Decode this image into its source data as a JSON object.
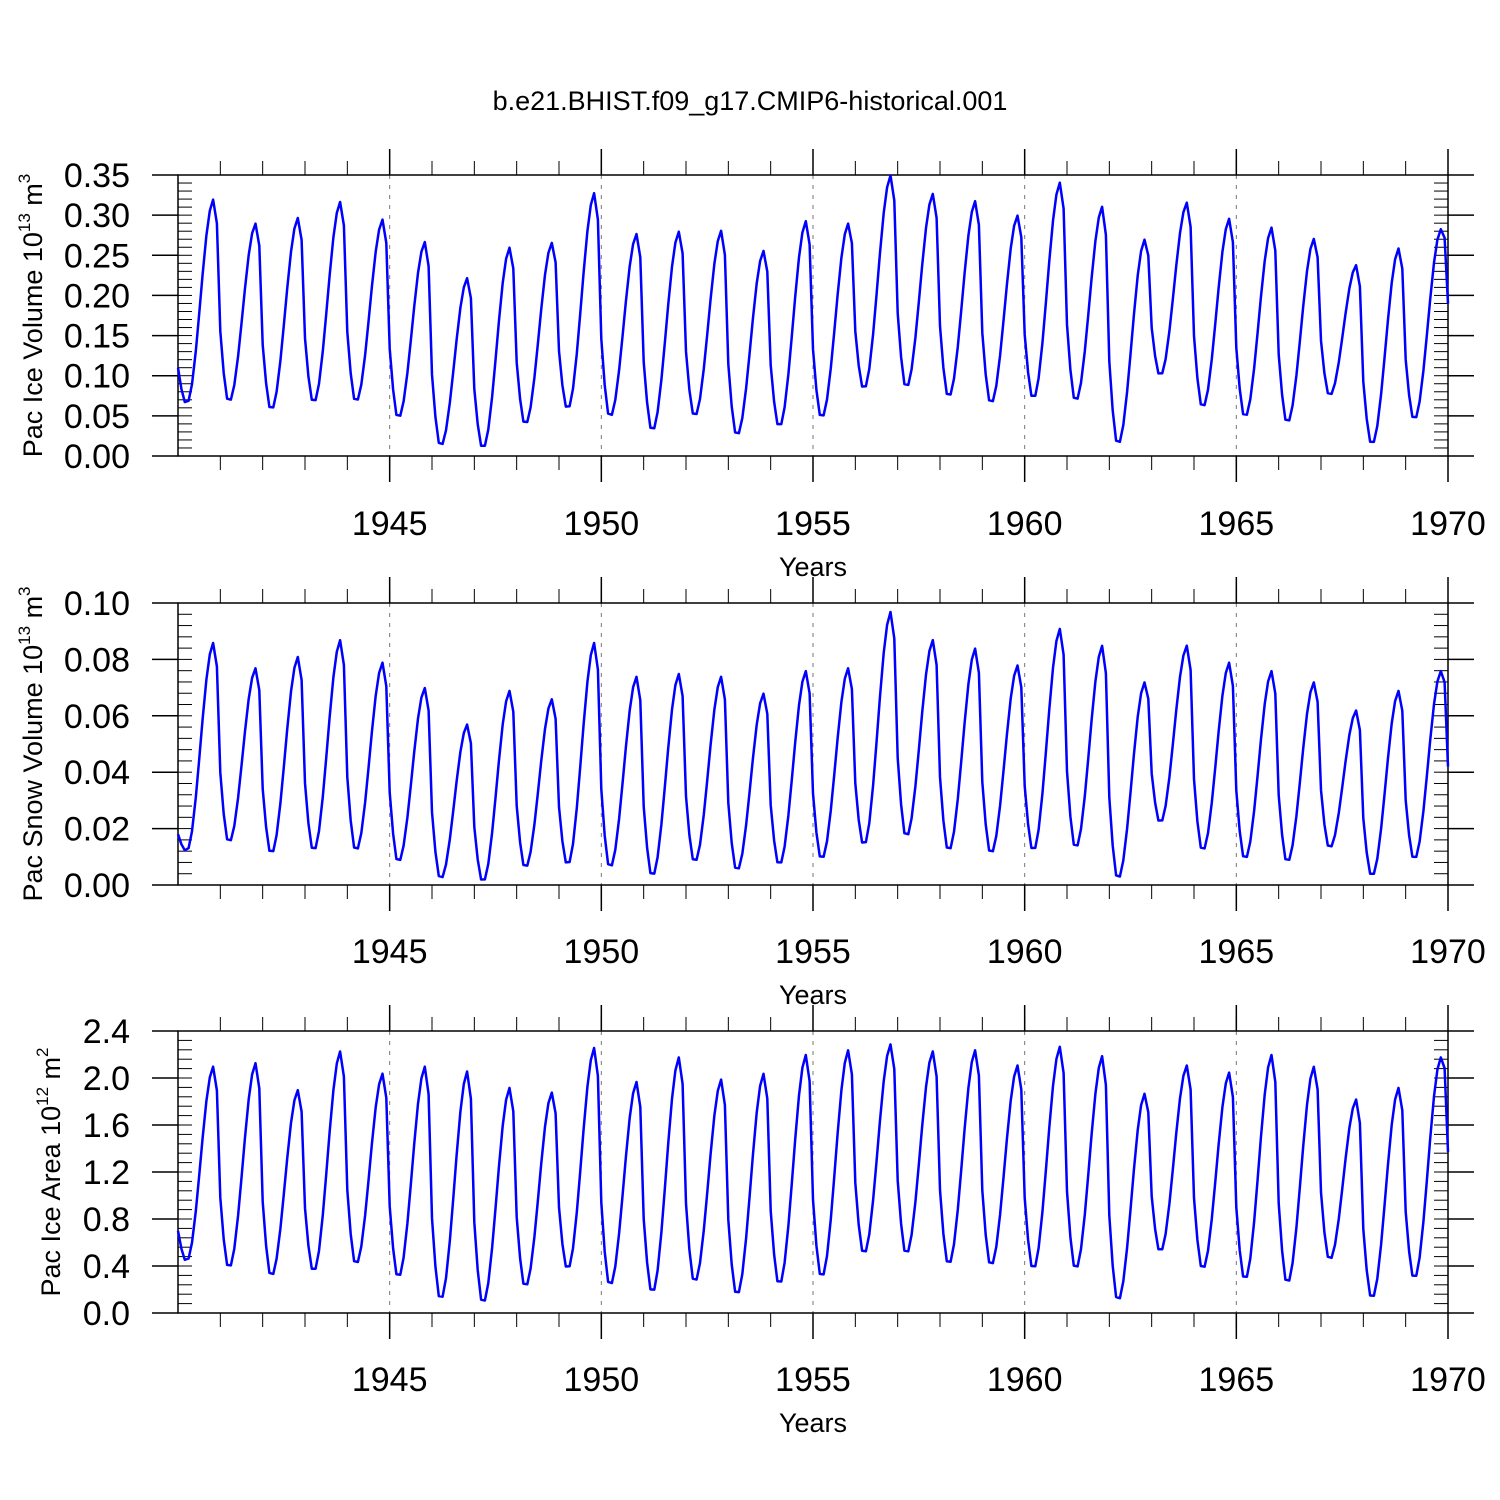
{
  "title": "b.e21.BHIST.f09_g17.CMIP6-historical.001",
  "colors": {
    "line": "#0000ff",
    "axis": "#000000",
    "refline": "#777777"
  },
  "chart_data": [
    {
      "type": "line",
      "ylabel_main": "Pac Ice Volume 10",
      "ylabel_exp": "13",
      "ylabel_unit": " m",
      "ylabel_unit_exp": "3",
      "xlabel": "Years",
      "xlim": [
        1940,
        1970
      ],
      "ylim": [
        0,
        0.35
      ],
      "x_ticks": [
        1945,
        1950,
        1955,
        1960,
        1965,
        1970
      ],
      "x_tick_labels": [
        "1945",
        "1950",
        "1955",
        "1960",
        "1965",
        "1970"
      ],
      "y_ticks": [
        0.0,
        0.05,
        0.1,
        0.15,
        0.2,
        0.25,
        0.3,
        0.35
      ],
      "y_tick_labels": [
        "0.00",
        "0.05",
        "0.10",
        "0.15",
        "0.20",
        "0.25",
        "0.30",
        "0.35"
      ],
      "y_minor_step": 0.01,
      "x_minor_step": 1,
      "ref_years": [
        1945,
        1950,
        1955,
        1960,
        1965
      ],
      "series": [
        {
          "name": "Pac Ice Volume",
          "start_year": 1940,
          "peaks": [
            0.32,
            0.29,
            0.297,
            0.317,
            0.295,
            0.267,
            0.222,
            0.26,
            0.266,
            0.328,
            0.277,
            0.28,
            0.281,
            0.256,
            0.293,
            0.29,
            0.35,
            0.327,
            0.318,
            0.3,
            0.341,
            0.311,
            0.27,
            0.316,
            0.296,
            0.285,
            0.271,
            0.238,
            0.259,
            0.283
          ],
          "mins": [
            0.065,
            0.067,
            0.057,
            0.066,
            0.067,
            0.047,
            0.012,
            0.009,
            0.039,
            0.058,
            0.048,
            0.031,
            0.049,
            0.025,
            0.036,
            0.047,
            0.083,
            0.085,
            0.073,
            0.065,
            0.071,
            0.068,
            0.014,
            0.1,
            0.06,
            0.048,
            0.041,
            0.075,
            0.014,
            0.045
          ],
          "start_value": 0.11,
          "end_value": 0.19
        }
      ]
    },
    {
      "type": "line",
      "ylabel_main": "Pac Snow Volume 10",
      "ylabel_exp": "13",
      "ylabel_unit": " m",
      "ylabel_unit_exp": "3",
      "xlabel": "Years",
      "xlim": [
        1940,
        1970
      ],
      "ylim": [
        0,
        0.1
      ],
      "x_ticks": [
        1945,
        1950,
        1955,
        1960,
        1965,
        1970
      ],
      "x_tick_labels": [
        "1945",
        "1950",
        "1955",
        "1960",
        "1965",
        "1970"
      ],
      "y_ticks": [
        0.0,
        0.02,
        0.04,
        0.06,
        0.08,
        0.1
      ],
      "y_tick_labels": [
        "0.00",
        "0.02",
        "0.04",
        "0.06",
        "0.08",
        "0.10"
      ],
      "y_minor_step": 0.004,
      "x_minor_step": 1,
      "ref_years": [
        1945,
        1950,
        1955,
        1960,
        1965
      ],
      "series": [
        {
          "name": "Pac Snow Volume",
          "start_year": 1940,
          "peaks": [
            0.086,
            0.077,
            0.081,
            0.087,
            0.079,
            0.07,
            0.057,
            0.069,
            0.066,
            0.086,
            0.074,
            0.075,
            0.074,
            0.068,
            0.076,
            0.077,
            0.097,
            0.087,
            0.084,
            0.078,
            0.091,
            0.085,
            0.072,
            0.085,
            0.079,
            0.076,
            0.072,
            0.062,
            0.069,
            0.076
          ],
          "mins": [
            0.012,
            0.015,
            0.011,
            0.012,
            0.012,
            0.008,
            0.002,
            0.001,
            0.006,
            0.007,
            0.006,
            0.003,
            0.008,
            0.005,
            0.007,
            0.009,
            0.014,
            0.017,
            0.012,
            0.011,
            0.012,
            0.013,
            0.002,
            0.022,
            0.012,
            0.009,
            0.008,
            0.013,
            0.003,
            0.009
          ],
          "start_value": 0.018,
          "end_value": 0.042
        }
      ]
    },
    {
      "type": "line",
      "ylabel_main": "Pac Ice Area 10",
      "ylabel_exp": "12",
      "ylabel_unit": " m",
      "ylabel_unit_exp": "2",
      "xlabel": "Years",
      "xlim": [
        1940,
        1970
      ],
      "ylim": [
        0,
        2.4
      ],
      "x_ticks": [
        1945,
        1950,
        1955,
        1960,
        1965,
        1970
      ],
      "x_tick_labels": [
        "1945",
        "1950",
        "1955",
        "1960",
        "1965",
        "1970"
      ],
      "y_ticks": [
        0.0,
        0.4,
        0.8,
        1.2,
        1.6,
        2.0,
        2.4
      ],
      "y_tick_labels": [
        "0.0",
        "0.4",
        "0.8",
        "1.2",
        "1.6",
        "2.0",
        "2.4"
      ],
      "y_minor_step": 0.08,
      "x_minor_step": 1,
      "ref_years": [
        1945,
        1950,
        1955,
        1960,
        1965
      ],
      "series": [
        {
          "name": "Pac Ice Area",
          "start_year": 1940,
          "peaks": [
            2.1,
            2.13,
            1.9,
            2.23,
            2.04,
            2.1,
            2.06,
            1.92,
            1.88,
            2.26,
            1.97,
            2.18,
            1.99,
            2.04,
            2.2,
            2.24,
            2.29,
            2.23,
            2.24,
            2.11,
            2.27,
            2.19,
            1.87,
            2.11,
            2.05,
            2.2,
            2.1,
            1.82,
            1.92,
            2.18
          ],
          "mins": [
            0.44,
            0.38,
            0.31,
            0.35,
            0.41,
            0.3,
            0.11,
            0.08,
            0.22,
            0.37,
            0.23,
            0.17,
            0.26,
            0.15,
            0.24,
            0.3,
            0.5,
            0.5,
            0.41,
            0.4,
            0.37,
            0.37,
            0.1,
            0.52,
            0.37,
            0.28,
            0.25,
            0.45,
            0.12,
            0.29
          ],
          "start_value": 0.7,
          "end_value": 1.37
        }
      ]
    }
  ]
}
